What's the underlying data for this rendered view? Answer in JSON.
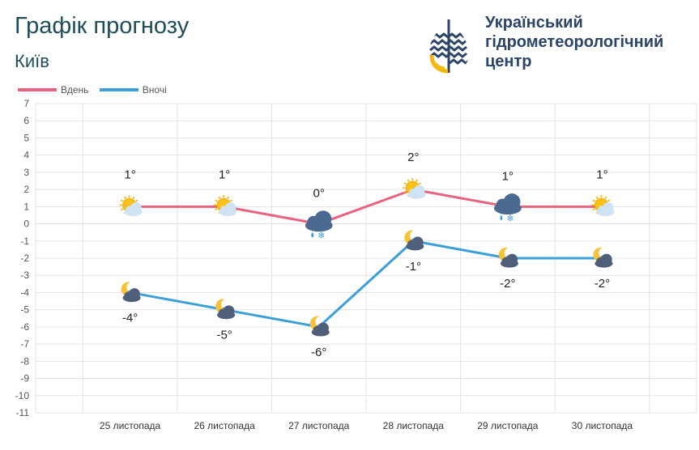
{
  "header": {
    "title": "Графік прогнозу",
    "city": "Київ",
    "org_name_lines": [
      "Український",
      "гідрометеорологічний",
      "центр"
    ]
  },
  "colors": {
    "day": "#e8637f",
    "night": "#3d9fd8",
    "title": "#1f4e5a",
    "org": "#2d4469",
    "grid": "#e3e3e3"
  },
  "chart_data": {
    "type": "line",
    "categories": [
      "25 листопада",
      "26 листопада",
      "27 листопада",
      "28 листопада",
      "29 листопада",
      "30 листопада"
    ],
    "series": [
      {
        "name": "Вдень",
        "values": [
          1,
          1,
          0,
          2,
          1,
          1
        ],
        "labels": [
          "1°",
          "1°",
          "0°",
          "2°",
          "1°",
          "1°"
        ],
        "icons": [
          "sun-cloud-icon",
          "sun-cloud-icon",
          "cloud-snow-icon",
          "sun-cloud-icon",
          "cloud-snow-icon",
          "sun-cloud-icon"
        ]
      },
      {
        "name": "Вночі",
        "values": [
          -4,
          -5,
          -6,
          -1,
          -2,
          -2
        ],
        "labels": [
          "-4°",
          "-5°",
          "-6°",
          "-1°",
          "-2°",
          "-2°"
        ],
        "icons": [
          "moon-cloud-icon",
          "moon-cloud-icon",
          "moon-cloud-icon",
          "moon-cloud-icon",
          "moon-cloud-icon",
          "moon-cloud-icon"
        ]
      }
    ],
    "ylim": [
      -11,
      7
    ],
    "yticks": [
      "7",
      "6",
      "5",
      "4",
      "3",
      "2",
      "1",
      "0",
      "-1",
      "-2",
      "-3",
      "-4",
      "-5",
      "-6",
      "-7",
      "-8",
      "-9",
      "-10",
      "-11"
    ],
    "grid": true,
    "legend_position": "top-left",
    "xlabel": "",
    "ylabel": ""
  }
}
